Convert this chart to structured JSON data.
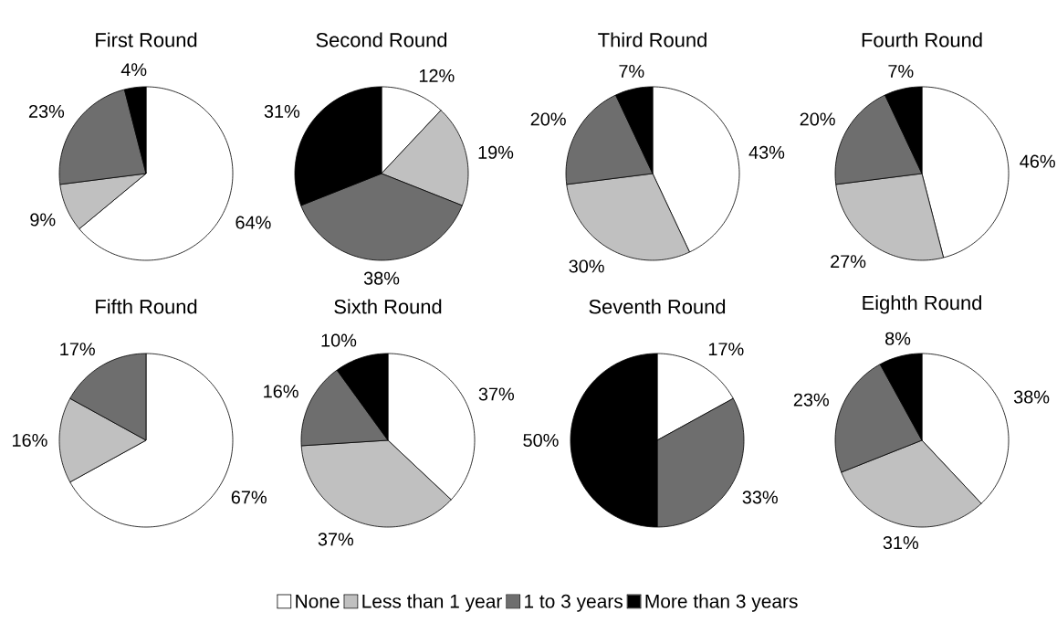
{
  "chart_data": [
    {
      "type": "pie",
      "title": "First Round",
      "categories": [
        "None",
        "Less than 1 year",
        "1 to 3 years",
        "More than 3 years"
      ],
      "values": [
        64,
        9,
        23,
        4
      ],
      "value_labels": [
        "64%",
        "9%",
        "23%",
        "4%"
      ],
      "colors": [
        "#ffffff",
        "#c0c0c0",
        "#6e6e6e",
        "#000000"
      ],
      "legend": "bottom"
    },
    {
      "type": "pie",
      "title": "Second Round",
      "values": [
        12,
        19,
        38,
        31
      ],
      "value_labels": [
        "12%",
        "19%",
        "38%",
        "31%"
      ],
      "colors": [
        "#ffffff",
        "#c0c0c0",
        "#6e6e6e",
        "#000000"
      ]
    },
    {
      "type": "pie",
      "title": "Third Round",
      "values": [
        43,
        30,
        20,
        7
      ],
      "value_labels": [
        "43%",
        "30%",
        "20%",
        "7%"
      ],
      "colors": [
        "#ffffff",
        "#c0c0c0",
        "#6e6e6e",
        "#000000"
      ]
    },
    {
      "type": "pie",
      "title": "Fourth Round",
      "values": [
        46,
        27,
        20,
        7
      ],
      "value_labels": [
        "46%",
        "27%",
        "20%",
        "7%"
      ],
      "colors": [
        "#ffffff",
        "#c0c0c0",
        "#6e6e6e",
        "#000000"
      ]
    },
    {
      "type": "pie",
      "title": "Fifth Round",
      "values": [
        67,
        16,
        17
      ],
      "value_labels": [
        "67%",
        "16%",
        "17%"
      ],
      "colors": [
        "#ffffff",
        "#c0c0c0",
        "#6e6e6e"
      ]
    },
    {
      "type": "pie",
      "title": "Sixth Round",
      "values": [
        37,
        37,
        16,
        10
      ],
      "value_labels": [
        "37%",
        "37%",
        "16%",
        "10%"
      ],
      "colors": [
        "#ffffff",
        "#c0c0c0",
        "#6e6e6e",
        "#000000"
      ]
    },
    {
      "type": "pie",
      "title": "Seventh Round",
      "values": [
        17,
        33,
        50
      ],
      "value_labels": [
        "17%",
        "33%",
        "50%"
      ],
      "colors": [
        "#ffffff",
        "#6e6e6e",
        "#000000"
      ]
    },
    {
      "type": "pie",
      "title": "Eighth Round",
      "values": [
        38,
        31,
        23,
        8
      ],
      "value_labels": [
        "38%",
        "31%",
        "23%",
        "8%"
      ],
      "colors": [
        "#ffffff",
        "#c0c0c0",
        "#6e6e6e",
        "#000000"
      ]
    }
  ]
}
